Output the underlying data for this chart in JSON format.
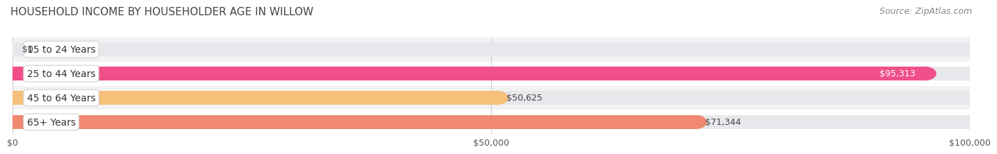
{
  "title": "HOUSEHOLD INCOME BY HOUSEHOLDER AGE IN WILLOW",
  "source": "Source: ZipAtlas.com",
  "categories": [
    "15 to 24 Years",
    "25 to 44 Years",
    "45 to 64 Years",
    "65+ Years"
  ],
  "values": [
    0,
    95313,
    50625,
    71344
  ],
  "value_labels": [
    "$0",
    "$95,313",
    "$50,625",
    "$71,344"
  ],
  "bar_colors": [
    "#aaaad0",
    "#f0508a",
    "#f5c07a",
    "#f08872"
  ],
  "track_color": "#e8e8ec",
  "row_bg_colors": [
    "#f2f2f2",
    "#ffffff",
    "#f2f2f2",
    "#ffffff"
  ],
  "xlim": [
    0,
    100000
  ],
  "xticks": [
    0,
    50000,
    100000
  ],
  "xtick_labels": [
    "$0",
    "$50,000",
    "$100,000"
  ],
  "title_fontsize": 11,
  "label_fontsize": 10,
  "tick_fontsize": 9,
  "source_fontsize": 9,
  "bar_height": 0.58,
  "grid_color": "#cccccc",
  "background_color": "#ffffff",
  "value_label_color_inside": "#ffffff",
  "value_label_color_outside": "#444444"
}
